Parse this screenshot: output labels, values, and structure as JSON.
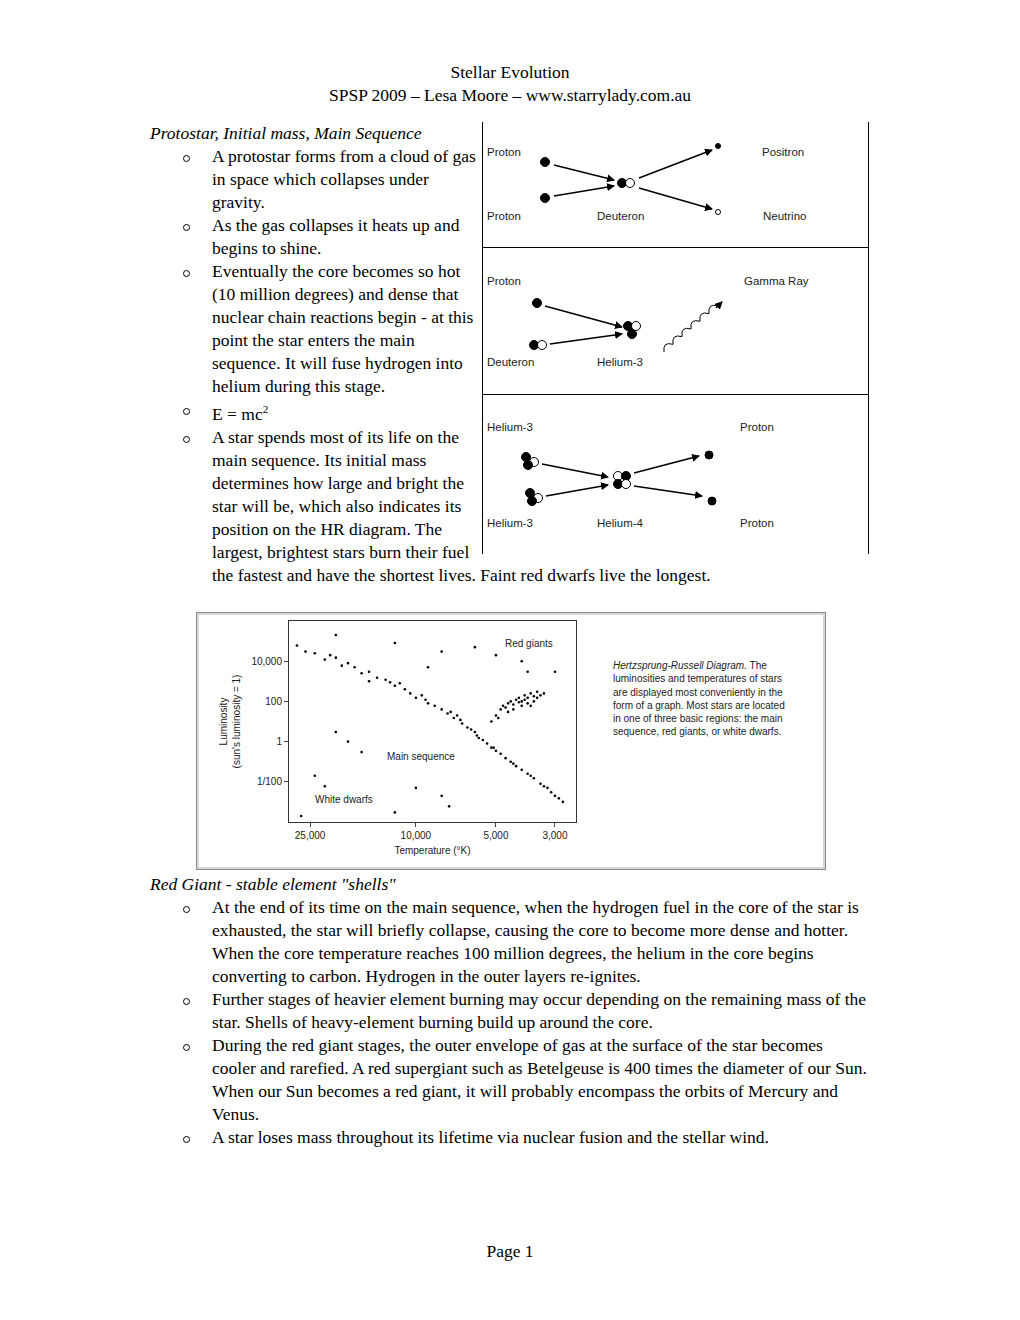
{
  "header": {
    "title": "Stellar Evolution",
    "subtitle": "SPSP 2009 – Lesa Moore – www.starrylady.com.au"
  },
  "sections": [
    {
      "heading": "Protostar, Initial mass, Main Sequence",
      "bullets": [
        "A protostar forms from a cloud of gas in space which collapses under gravity.",
        "As the gas collapses it heats up and begins to shine.",
        "Eventually the core becomes so hot (10 million degrees) and dense that nuclear chain reactions begin - at this point the star enters the main sequence. It will fuse hydrogen into helium during this stage.",
        {
          "text": "E = mc",
          "sup": "2"
        },
        "A star spends most of its life on the main sequence. Its initial mass determines how large and bright the star will be, which also indicates its position on the HR diagram. The largest, brightest stars burn their fuel the fastest and have the shortest lives. Faint red dwarfs live the longest."
      ]
    },
    {
      "heading": "Red Giant - stable element \"shells\"",
      "bullets": [
        "At the end of its time on the main sequence, when the hydrogen fuel in the core of the star is exhausted, the star will briefly collapse, causing the core to become more dense and hotter. When the core temperature reaches 100 million degrees, the helium in the core begins converting to carbon. Hydrogen in the outer layers re-ignites.",
        "Further stages of heavier element burning may occur depending on the remaining mass of the star. Shells of heavy-element burning build up around the core.",
        "During the red giant stages, the outer envelope of gas at the surface of the star becomes cooler and rarefied. A red supergiant such as Betelgeuse is 400 times the diameter of our Sun. When our Sun becomes a red giant, it will probably encompass the orbits of Mercury and Venus.",
        "A star loses mass throughout its lifetime via nuclear fusion and the stellar wind."
      ]
    }
  ],
  "reaction_diagram": {
    "panels": [
      {
        "labels": [
          "Proton",
          "Positron",
          "Proton",
          "Deuteron",
          "Neutrino"
        ]
      },
      {
        "labels": [
          "Proton",
          "Gamma Ray",
          "Deuteron",
          "Helium-3"
        ]
      },
      {
        "labels": [
          "Helium-3",
          "Proton",
          "Helium-3",
          "Helium-4",
          "Proton"
        ]
      }
    ]
  },
  "chart_data": {
    "type": "scatter",
    "x": [
      28000,
      26000,
      24000,
      22000,
      20000,
      19000,
      17000,
      16000,
      15000,
      14000,
      13000,
      12000,
      11500,
      11000,
      10500,
      10000,
      9500,
      9000,
      8500,
      8000,
      7600,
      7200,
      7000,
      6700,
      6400,
      6200,
      6000,
      5800,
      5600,
      5400,
      5200,
      5000,
      4800,
      4600,
      4400,
      4200,
      4000,
      3800,
      3600,
      3400,
      3200,
      3100,
      3000,
      2900,
      2800,
      21000,
      18000,
      12500,
      9200,
      7400,
      6800,
      5900,
      5100,
      4300,
      3700,
      3300,
      4800,
      4700,
      4600,
      4500,
      4400,
      4300,
      4200,
      4100,
      4000,
      3900,
      3800,
      3700,
      3600,
      3500,
      3400,
      3300,
      4500,
      4300,
      4000,
      3800,
      3600,
      3900,
      4100,
      3700,
      3500,
      5000,
      5200,
      4900,
      20000,
      12000,
      8000,
      6000,
      5000,
      4000,
      3000,
      3800,
      9000,
      15000,
      24000,
      22000,
      12000,
      10000,
      8000,
      7500,
      27000,
      20000,
      18000,
      16000
    ],
    "values": [
      60000,
      30000,
      25000,
      12000,
      15000,
      6000,
      5000,
      2500,
      3000,
      1500,
      1200,
      600,
      800,
      400,
      250,
      150,
      200,
      80,
      60,
      40,
      25,
      15,
      20,
      8,
      5,
      4,
      3,
      1.5,
      1.2,
      0.8,
      0.5,
      0.35,
      0.25,
      0.15,
      0.1,
      0.06,
      0.04,
      0.025,
      0.015,
      0.008,
      0.005,
      0.003,
      0.002,
      0.0015,
      0.001,
      20000,
      8000,
      900,
      120,
      30,
      12,
      2,
      0.5,
      0.08,
      0.02,
      0.006,
      40,
      60,
      50,
      80,
      100,
      70,
      120,
      150,
      100,
      200,
      150,
      250,
      180,
      300,
      200,
      250,
      30,
      40,
      60,
      80,
      100,
      120,
      90,
      60,
      150,
      20,
      10,
      15,
      200000,
      80000,
      30000,
      50000,
      20000,
      10000,
      3000,
      3000,
      5000,
      1000,
      0.02,
      0.006,
      0.0003,
      0.005,
      0.002,
      0.0006,
      0.0002,
      3,
      1,
      0.3
    ],
    "color": "#000000",
    "marker": "dot",
    "log": true,
    "grid": false,
    "xlim": [
      30000,
      2500
    ],
    "ylim": [
      0.0001,
      1000000
    ],
    "xticks": [
      {
        "value": 25000,
        "label": "25,000"
      },
      {
        "value": 10000,
        "label": "10,000"
      },
      {
        "value": 5000,
        "label": "5,000"
      },
      {
        "value": 3000,
        "label": "3,000"
      }
    ],
    "yticks": [
      {
        "value": 10000,
        "label": "10,000"
      },
      100,
      1,
      {
        "value": 0.01,
        "label": "1/100"
      }
    ],
    "x_label": "Temperature (°K)",
    "y_label": [
      "Luminosity",
      "(sun's luminosity = 1)"
    ],
    "annotations": [
      {
        "text": "Red giants",
        "x": 3760,
        "y": 74000
      },
      {
        "text": "Main sequence",
        "x": 9570,
        "y": 0.18
      },
      {
        "text": "White dwarfs",
        "x": 18600,
        "y": 0.0013
      }
    ]
  },
  "hr_caption": {
    "title": "Hertzsprung-Russell Diagram.",
    "text": "The luminosities and temperatures of stars are displayed most conveniently in the form of a graph. Most stars are located in one of three basic regions: the main sequence, red giants, or white dwarfs."
  },
  "footer": "Page 1"
}
